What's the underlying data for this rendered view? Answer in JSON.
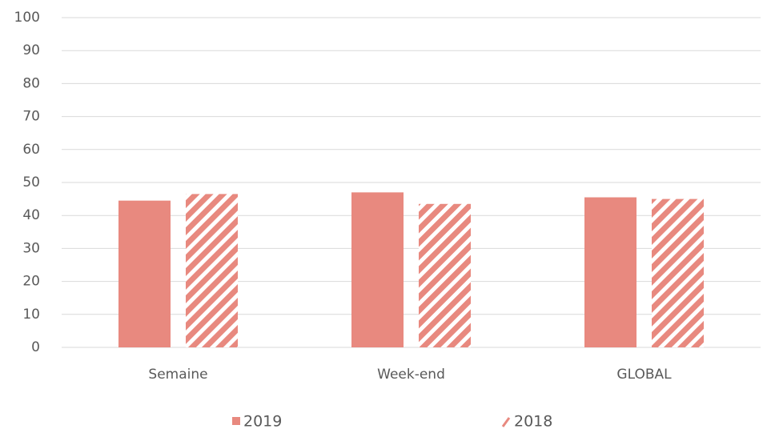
{
  "chart_data": {
    "type": "bar",
    "categories": [
      "Semaine",
      "Week-end",
      "GLOBAL"
    ],
    "series": [
      {
        "name": "2019",
        "color": "#e8897f",
        "values": [
          44.5,
          47,
          45.5
        ]
      },
      {
        "name": "2018",
        "color": "#e8897f",
        "pattern": "hatch",
        "values": [
          46.5,
          43.5,
          45
        ]
      }
    ],
    "ylim": [
      0,
      100
    ],
    "yticks": [
      0,
      10,
      20,
      30,
      40,
      50,
      60,
      70,
      80,
      90,
      100
    ],
    "grid": true,
    "legend": "bottom"
  }
}
